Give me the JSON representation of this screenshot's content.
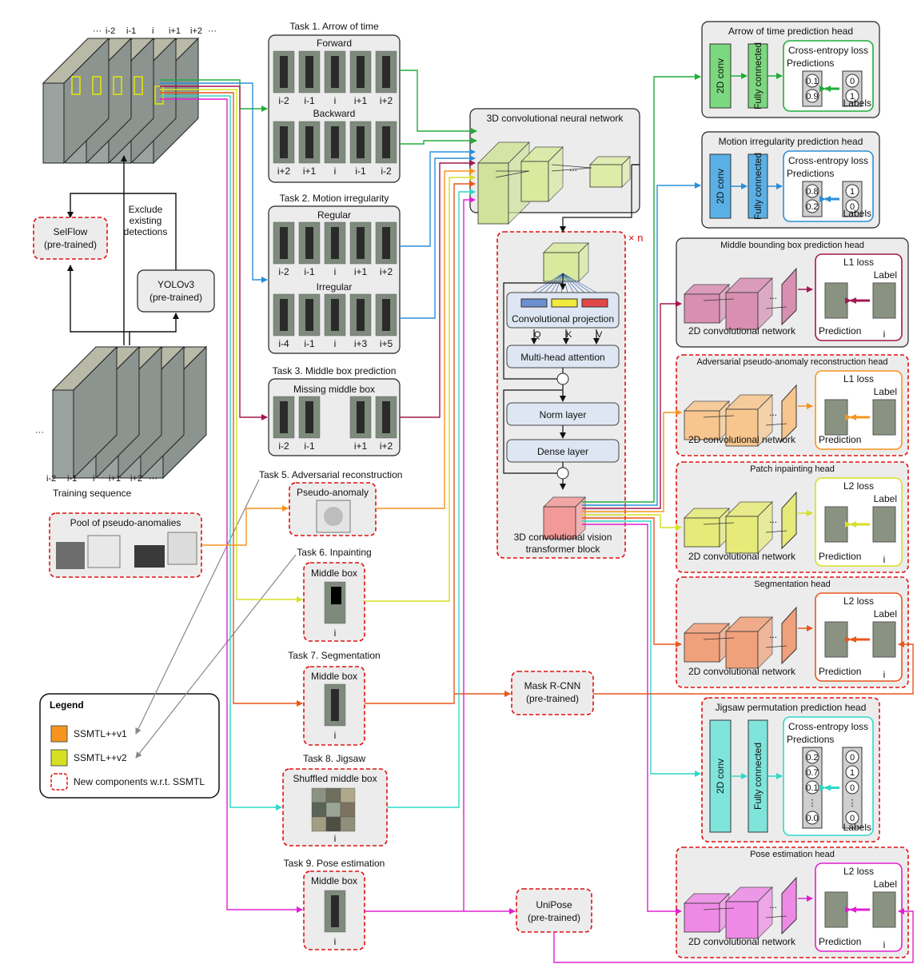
{
  "frames": {
    "top_labels": [
      "···",
      "i-2",
      "i-1",
      "i",
      "i+1",
      "i+2",
      "···"
    ],
    "bottom_labels": [
      "···",
      "i-2",
      "i-1",
      "i",
      "i+1",
      "i+2",
      "···"
    ],
    "training_sequence": "Training sequence"
  },
  "pipeline": {
    "selflow": [
      "SelFlow",
      "(pre-trained)"
    ],
    "yolo": [
      "YOLOv3",
      "(pre-trained)"
    ],
    "exclude": [
      "Exclude",
      "existing",
      "detections"
    ],
    "pool": "Pool of pseudo-anomalies"
  },
  "tasks": {
    "t1": {
      "title": "Task 1. Arrow of time",
      "forward": "Forward",
      "backward": "Backward",
      "fwd_labels": [
        "i-2",
        "i-1",
        "i",
        "i+1",
        "i+2"
      ],
      "bwd_labels": [
        "i+2",
        "i+1",
        "i",
        "i-1",
        "i-2"
      ]
    },
    "t2": {
      "title": "Task 2. Motion irregularity",
      "regular": "Regular",
      "irregular": "Irregular",
      "reg_labels": [
        "i-2",
        "i-1",
        "i",
        "i+1",
        "i+2"
      ],
      "irr_labels": [
        "i-4",
        "i-1",
        "i",
        "i+3",
        "i+5"
      ]
    },
    "t3": {
      "title": "Task 3. Middle box prediction",
      "sub": "Missing middle box",
      "labels": [
        "i-2",
        "i-1",
        "i+1",
        "i+2"
      ]
    },
    "t5": {
      "title": "Task 5. Adversarial reconstruction",
      "sub": "Pseudo-anomaly"
    },
    "t6": {
      "title": "Task 6. Inpainting",
      "sub": "Middle box",
      "label": "i"
    },
    "t7": {
      "title": "Task 7. Segmentation",
      "sub": "Middle box",
      "label": "i"
    },
    "t8": {
      "title": "Task 8. Jigsaw",
      "sub": "Shuffled middle box",
      "label": "i"
    },
    "t9": {
      "title": "Task 9. Pose estimation",
      "sub": "Middle box",
      "label": "i"
    }
  },
  "models": {
    "mask_rcnn": [
      "Mask R-CNN",
      "(pre-trained)"
    ],
    "unipose": [
      "UniPose",
      "(pre-trained)"
    ]
  },
  "cnn3d": {
    "title": "3D convolutional neural network",
    "dots": "..."
  },
  "transformer": {
    "times": "× n",
    "conv_proj": "Convolutional projection",
    "q": "Q",
    "k": "K",
    "v": "V",
    "mha": "Multi-head attention",
    "norm": "Norm layer",
    "dense": "Dense layer",
    "caption": [
      "3D convolutional vision",
      "transformer block"
    ]
  },
  "heads": {
    "aot": {
      "title": "Arrow of time prediction head",
      "conv": "2D conv",
      "fc": "Fully connected",
      "loss": "Cross-entropy loss",
      "predictions": "Predictions",
      "labels": "Labels",
      "pred_vals": [
        "0.1",
        "0.9"
      ],
      "label_vals": [
        "0",
        "1"
      ]
    },
    "mi": {
      "title": "Motion irregularity prediction head",
      "conv": "2D conv",
      "fc": "Fully connected",
      "loss": "Cross-entropy loss",
      "predictions": "Predictions",
      "labels": "Labels",
      "pred_vals": [
        "0.8",
        "0.2"
      ],
      "label_vals": [
        "1",
        "0"
      ]
    },
    "mbb": {
      "title": "Middle bounding box prediction head",
      "loss": "L1 loss",
      "label": "Label",
      "prediction": "Prediction",
      "i": "i",
      "net": "2D convolutional network"
    },
    "adv": {
      "title": "Adversarial pseudo-anomaly reconstruction head",
      "loss": "L1 loss",
      "label": "Label",
      "prediction": "Prediction",
      "net": "2D convolutional network"
    },
    "patch": {
      "title": "Patch inpainting head",
      "loss": "L2 loss",
      "label": "Label",
      "prediction": "Prediction",
      "i": "i",
      "net": "2D convolutional network"
    },
    "seg": {
      "title": "Segmentation head",
      "loss": "L2 loss",
      "label": "Label",
      "prediction": "Prediction",
      "i": "i",
      "net": "2D convolutional network"
    },
    "jig": {
      "title": "Jigsaw permutation prediction head",
      "conv": "2D conv",
      "fc": "Fully connected",
      "loss": "Cross-entropy loss",
      "predictions": "Predictions",
      "labels": "Labels",
      "pred_vals": [
        "0.2",
        "0.7",
        "0.1",
        "⋮",
        "0.0"
      ],
      "label_vals": [
        "0",
        "1",
        "0",
        "⋮",
        "0"
      ]
    },
    "pose": {
      "title": "Pose estimation head",
      "loss": "L2 loss",
      "label": "Label",
      "prediction": "Prediction",
      "i": "i",
      "net": "2D convolutional network"
    }
  },
  "legend": {
    "title": "Legend",
    "items": [
      "SSMTL++v1",
      "SSMTL++v2",
      "New components w.r.t. SSMTL"
    ],
    "colors": [
      "#f7941d",
      "#d7df23",
      "#e01010"
    ]
  },
  "colors": {
    "green": "#1fae3a",
    "blue": "#2a8fd8",
    "maroon": "#a3174f",
    "orange": "#f7941d",
    "yellow": "#d7df23",
    "red_orange": "#e8571c",
    "cyan": "#2fd8c8",
    "magenta": "#e020d0",
    "red": "#e01010"
  }
}
